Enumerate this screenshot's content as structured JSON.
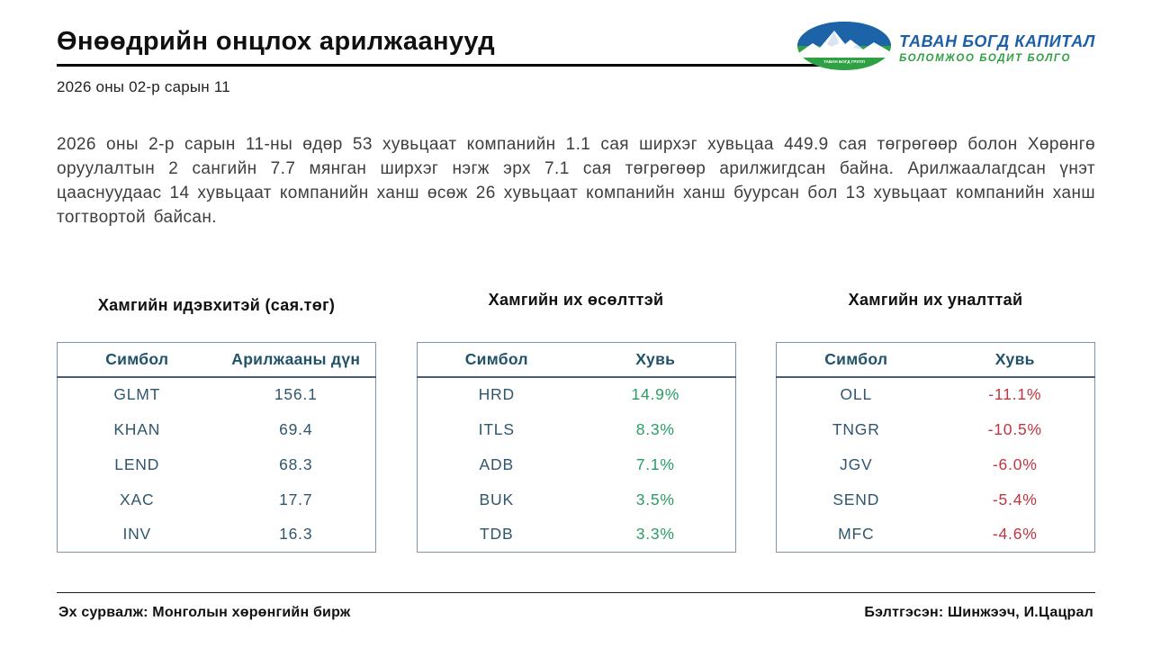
{
  "header": {
    "title": "Өнөөдрийн онцлох арилжаанууд",
    "date": "2026 оны 02-р сарын 11",
    "logo": {
      "brand": "ТАВАН БОГД КАПИТАЛ",
      "tagline": "БОЛОМЖОО БОДИТ БОЛГО",
      "emblem_text": "ТАВАН БОГД ГРУПП",
      "brand_color": "#1b5ea9",
      "tagline_color": "#2fa043",
      "emblem_sky_color": "#1c63a8",
      "emblem_ground_color": "#2fa043"
    }
  },
  "summary": "2026 оны 2-р сарын 11-ны өдөр 53 хувьцаат компанийн 1.1 сая ширхэг хувьцаа 449.9 сая төгрөгөөр болон Хөрөнгө оруулалтын 2 сангийн 7.7 мянган ширхэг нэгж эрх 7.1 сая төгрөгөөр арилжигдсан байна. Арилжаалагдсан үнэт цааснуудаас 14 хувьцаат компанийн ханш өсөж 26 хувьцаат компанийн ханш буурсан бол 13 хувьцаат компанийн ханш тогтвортой байсан.",
  "tables": [
    {
      "title": "Хамгийн идэвхитэй (сая.төг)",
      "columns": [
        "Симбол",
        "Арилжааны дүн"
      ],
      "value_color": "#30566c",
      "rows": [
        [
          "GLMT",
          "156.1"
        ],
        [
          "KHAN",
          "69.4"
        ],
        [
          "LEND",
          "68.3"
        ],
        [
          "XAC",
          "17.7"
        ],
        [
          "INV",
          "16.3"
        ]
      ]
    },
    {
      "title": "Хамгийн их өсөлттэй",
      "columns": [
        "Симбол",
        "Хувь"
      ],
      "value_color": "#2a9d64",
      "rows": [
        [
          "HRD",
          "14.9%"
        ],
        [
          "ITLS",
          "8.3%"
        ],
        [
          "ADB",
          "7.1%"
        ],
        [
          "BUK",
          "3.5%"
        ],
        [
          "TDB",
          "3.3%"
        ]
      ]
    },
    {
      "title": "Хамгийн их уналттай",
      "columns": [
        "Симбол",
        "Хувь"
      ],
      "value_color": "#c13440",
      "rows": [
        [
          "OLL",
          "-11.1%"
        ],
        [
          "TNGR",
          "-10.5%"
        ],
        [
          "JGV",
          "-6.0%"
        ],
        [
          "SEND",
          "-5.4%"
        ],
        [
          "MFC",
          "-4.6%"
        ]
      ]
    }
  ],
  "footer": {
    "source": "Эх сурвалж: Монголын хөрөнгийн бирж",
    "prepared_by": "Бэлтгэсэн: Шинжээч, И.Цацрал"
  }
}
